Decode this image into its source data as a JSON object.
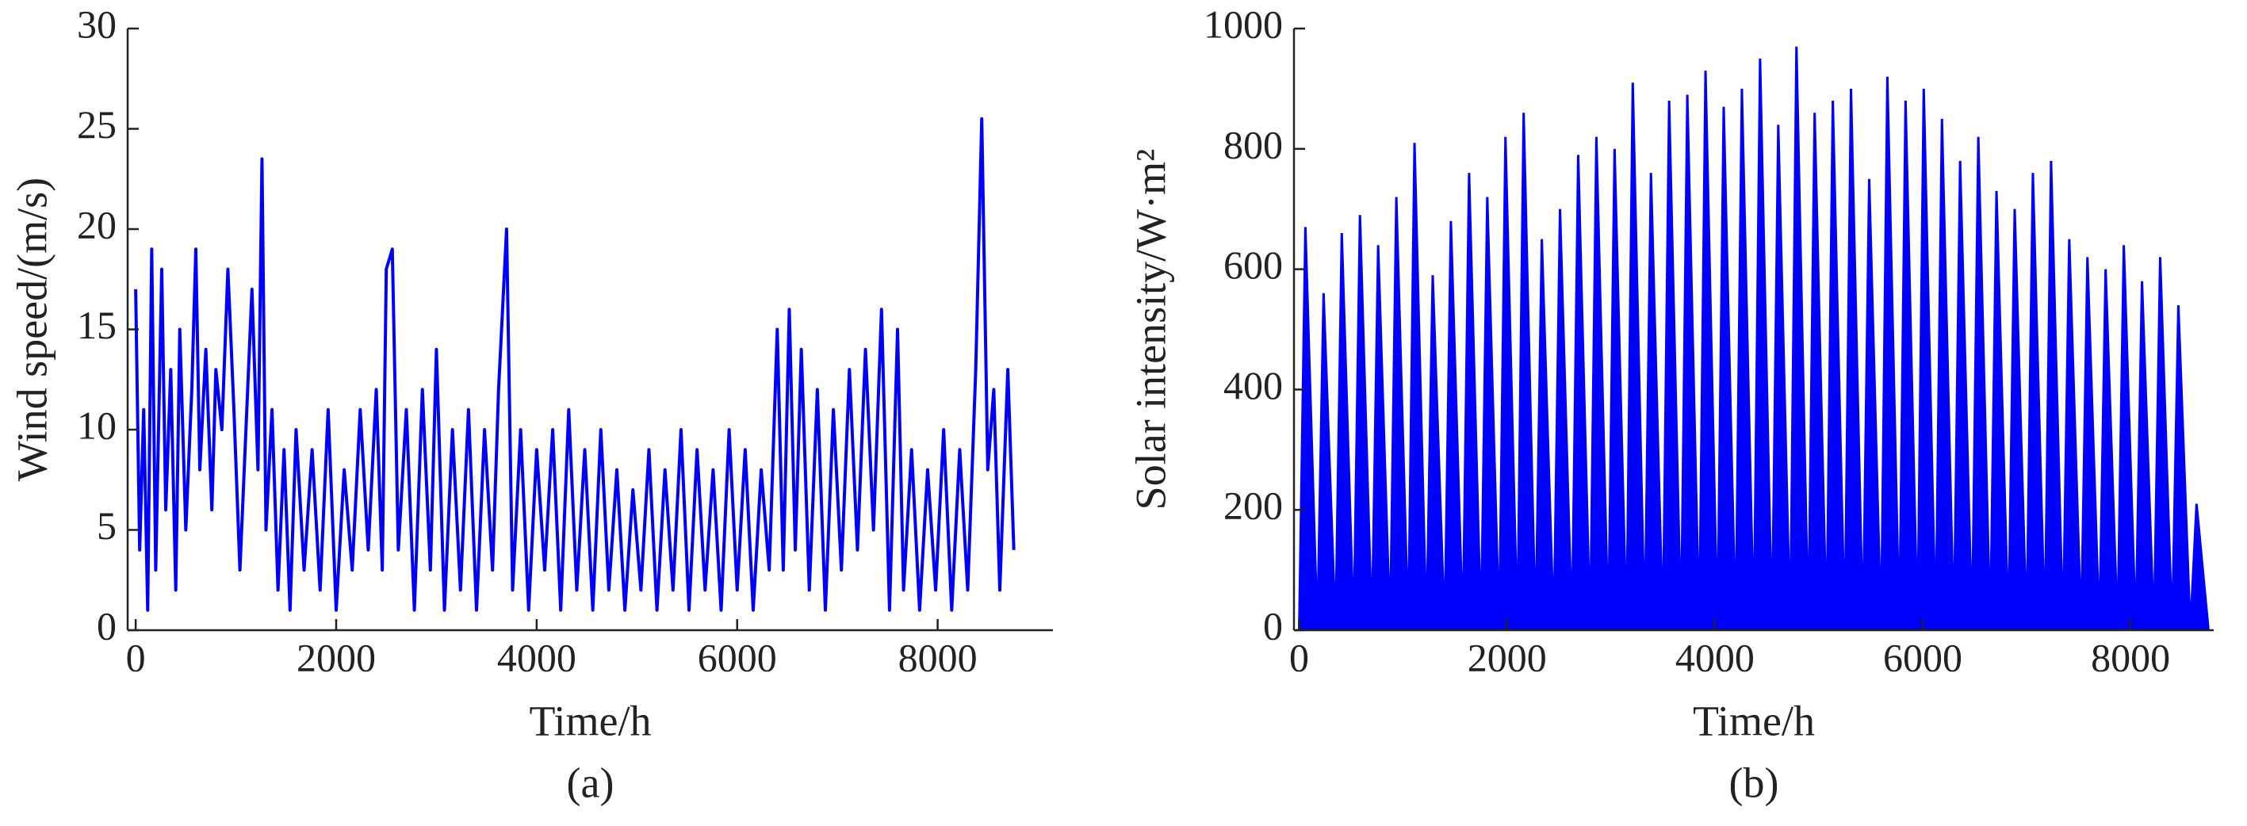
{
  "chart_data": [
    {
      "type": "line",
      "caption": "(a)",
      "x_label": "Time/h",
      "y_label": "Wind speed/(m/s)",
      "color": "#0000ff",
      "xlim": [
        -80,
        9150
      ],
      "ylim": [
        0,
        30
      ],
      "xticks": [
        0,
        2000,
        4000,
        6000,
        8000
      ],
      "yticks": [
        0,
        5,
        10,
        15,
        20,
        25,
        30
      ],
      "x": [
        0,
        40,
        80,
        120,
        160,
        200,
        260,
        300,
        350,
        400,
        440,
        500,
        560,
        600,
        640,
        700,
        760,
        800,
        860,
        920,
        980,
        1040,
        1100,
        1160,
        1220,
        1260,
        1300,
        1360,
        1420,
        1480,
        1540,
        1600,
        1680,
        1760,
        1840,
        1920,
        2000,
        2080,
        2160,
        2240,
        2320,
        2400,
        2460,
        2500,
        2560,
        2620,
        2700,
        2780,
        2860,
        2940,
        3000,
        3080,
        3160,
        3240,
        3320,
        3400,
        3480,
        3560,
        3620,
        3700,
        3760,
        3840,
        3920,
        4000,
        4080,
        4160,
        4240,
        4320,
        4400,
        4480,
        4560,
        4640,
        4720,
        4800,
        4880,
        4960,
        5040,
        5120,
        5200,
        5280,
        5360,
        5440,
        5520,
        5600,
        5680,
        5760,
        5840,
        5920,
        6000,
        6080,
        6160,
        6240,
        6320,
        6400,
        6460,
        6520,
        6580,
        6640,
        6720,
        6800,
        6880,
        6960,
        7040,
        7120,
        7200,
        7280,
        7360,
        7440,
        7520,
        7600,
        7660,
        7740,
        7820,
        7900,
        7980,
        8060,
        8140,
        8220,
        8300,
        8380,
        8440,
        8500,
        8560,
        8620,
        8700,
        8760
      ],
      "values": [
        17,
        4,
        11,
        1,
        19,
        3,
        18,
        6,
        13,
        2,
        15,
        5,
        12,
        19,
        8,
        14,
        6,
        13,
        10,
        18,
        11,
        3,
        10,
        17,
        8,
        23.5,
        5,
        11,
        2,
        9,
        1,
        10,
        3,
        9,
        2,
        11,
        1,
        8,
        3,
        11,
        4,
        12,
        3,
        18,
        19,
        4,
        11,
        1,
        12,
        3,
        14,
        1,
        10,
        2,
        11,
        1,
        10,
        3,
        12,
        20,
        2,
        10,
        1,
        9,
        3,
        10,
        1,
        11,
        2,
        9,
        1,
        10,
        2,
        8,
        1,
        7,
        2,
        9,
        1,
        8,
        2,
        10,
        1,
        9,
        2,
        8,
        1,
        10,
        2,
        9,
        1,
        8,
        3,
        15,
        3,
        16,
        4,
        14,
        2,
        12,
        1,
        11,
        3,
        13,
        4,
        14,
        5,
        16,
        1,
        15,
        2,
        9,
        1,
        8,
        2,
        10,
        1,
        9,
        2,
        13,
        25.5,
        8,
        12,
        2,
        13,
        4
      ]
    },
    {
      "type": "area",
      "caption": "(b)",
      "x_label": "Time/h",
      "y_label": "Solar intensity/W·m²",
      "color": "#0000ff",
      "xlim": [
        -50,
        8800
      ],
      "ylim": [
        0,
        1000
      ],
      "xticks": [
        0,
        2000,
        4000,
        6000,
        8000
      ],
      "yticks": [
        0,
        200,
        400,
        600,
        800,
        1000
      ],
      "x": [
        0,
        60,
        175,
        235,
        350,
        410,
        525,
        585,
        700,
        760,
        875,
        935,
        1050,
        1110,
        1225,
        1285,
        1400,
        1460,
        1575,
        1635,
        1750,
        1810,
        1925,
        1985,
        2100,
        2160,
        2275,
        2335,
        2450,
        2510,
        2625,
        2685,
        2800,
        2860,
        2975,
        3035,
        3150,
        3210,
        3325,
        3385,
        3500,
        3560,
        3675,
        3735,
        3850,
        3910,
        4025,
        4085,
        4200,
        4260,
        4375,
        4435,
        4550,
        4610,
        4725,
        4785,
        4900,
        4960,
        5075,
        5135,
        5250,
        5310,
        5425,
        5485,
        5600,
        5660,
        5775,
        5835,
        5950,
        6010,
        6125,
        6185,
        6300,
        6360,
        6475,
        6535,
        6650,
        6710,
        6825,
        6885,
        7000,
        7060,
        7175,
        7235,
        7350,
        7410,
        7525,
        7585,
        7700,
        7760,
        7875,
        7935,
        8050,
        8110,
        8225,
        8285,
        8400,
        8460,
        8575,
        8635,
        8750
      ],
      "values": [
        0,
        670,
        0,
        560,
        0,
        660,
        0,
        690,
        0,
        640,
        0,
        720,
        0,
        810,
        0,
        590,
        0,
        680,
        0,
        760,
        0,
        720,
        0,
        820,
        0,
        860,
        0,
        650,
        0,
        700,
        0,
        790,
        0,
        820,
        0,
        800,
        0,
        910,
        0,
        760,
        0,
        880,
        0,
        890,
        0,
        930,
        0,
        870,
        0,
        900,
        0,
        950,
        0,
        840,
        0,
        970,
        0,
        860,
        0,
        880,
        0,
        900,
        0,
        750,
        0,
        920,
        0,
        880,
        0,
        900,
        0,
        850,
        0,
        780,
        0,
        820,
        0,
        730,
        0,
        700,
        0,
        760,
        0,
        780,
        0,
        650,
        0,
        620,
        0,
        600,
        0,
        640,
        0,
        580,
        0,
        620,
        0,
        540,
        0,
        210,
        0
      ]
    }
  ]
}
